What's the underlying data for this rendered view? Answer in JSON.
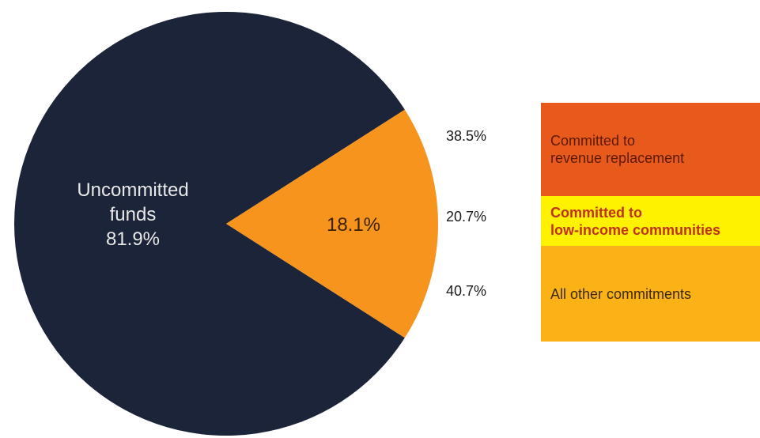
{
  "chart_data": {
    "type": "pie",
    "title": "",
    "slices": [
      {
        "label_line1": "Uncommitted",
        "label_line2": "funds",
        "value": 81.9,
        "value_label": "81.9%",
        "color": "#1b2438",
        "label_color": "#e8e8e8"
      },
      {
        "label": "18.1%",
        "value": 18.1,
        "color": "#f7941d",
        "label_color": "#3a2200"
      }
    ],
    "breakdown": {
      "items": [
        {
          "percent": "38.5%",
          "label_line1": "Committed to",
          "label_line2": "revenue replacement",
          "value": 38.5,
          "color": "#e85a1b",
          "text_color": "#5a1a08"
        },
        {
          "percent": "20.7%",
          "label_line1": "Committed to",
          "label_line2": "low-income communities",
          "value": 20.7,
          "color": "#fff200",
          "text_color": "#c0301a"
        },
        {
          "percent": "40.7%",
          "label_line1": "All other commitments",
          "label_line2": "",
          "value": 40.7,
          "color": "#fbb216",
          "text_color": "#3b2a08"
        }
      ]
    }
  }
}
